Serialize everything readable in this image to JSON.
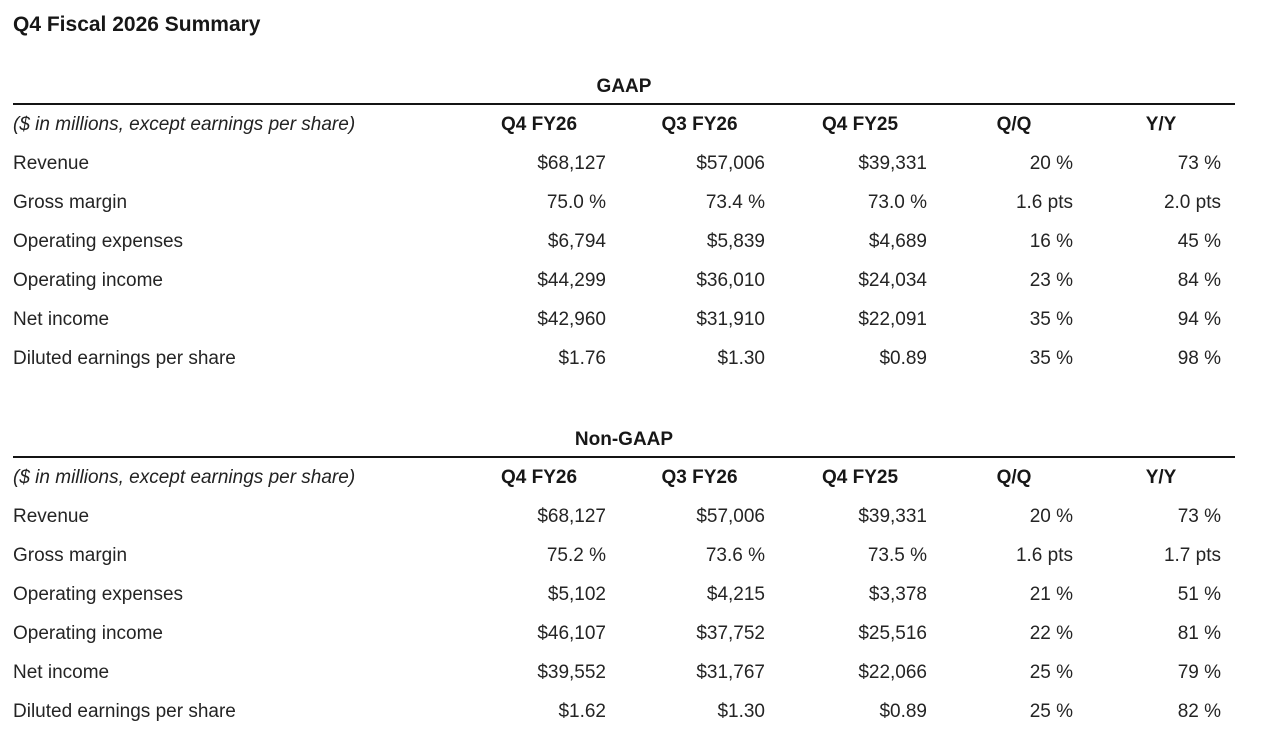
{
  "page": {
    "title": "Q4 Fiscal 2026 Summary"
  },
  "table_note": "($ in millions, except earnings per share)",
  "columns": [
    "Q4 FY26",
    "Q3 FY26",
    "Q4 FY25",
    "Q/Q",
    "Y/Y"
  ],
  "sections": [
    {
      "title": "GAAP",
      "rows": [
        {
          "label": "Revenue",
          "values": [
            "$68,127",
            "$57,006",
            "$39,331",
            "20 %",
            "73 %"
          ]
        },
        {
          "label": "Gross margin",
          "values": [
            "75.0 %",
            "73.4 %",
            "73.0 %",
            "1.6 pts",
            "2.0 pts"
          ]
        },
        {
          "label": "Operating expenses",
          "values": [
            "$6,794",
            "$5,839",
            "$4,689",
            "16 %",
            "45 %"
          ]
        },
        {
          "label": "Operating income",
          "values": [
            "$44,299",
            "$36,010",
            "$24,034",
            "23 %",
            "84 %"
          ]
        },
        {
          "label": "Net income",
          "values": [
            "$42,960",
            "$31,910",
            "$22,091",
            "35 %",
            "94 %"
          ]
        },
        {
          "label": "Diluted earnings per share",
          "values": [
            "$1.76",
            "$1.30",
            "$0.89",
            "35 %",
            "98 %"
          ]
        }
      ]
    },
    {
      "title": "Non-GAAP",
      "rows": [
        {
          "label": "Revenue",
          "values": [
            "$68,127",
            "$57,006",
            "$39,331",
            "20 %",
            "73 %"
          ]
        },
        {
          "label": "Gross margin",
          "values": [
            "75.2 %",
            "73.6 %",
            "73.5 %",
            "1.6 pts",
            "1.7 pts"
          ]
        },
        {
          "label": "Operating expenses",
          "values": [
            "$5,102",
            "$4,215",
            "$3,378",
            "21 %",
            "51 %"
          ]
        },
        {
          "label": "Operating income",
          "values": [
            "$46,107",
            "$37,752",
            "$25,516",
            "22 %",
            "81 %"
          ]
        },
        {
          "label": "Net income",
          "values": [
            "$39,552",
            "$31,767",
            "$22,066",
            "25 %",
            "79 %"
          ]
        },
        {
          "label": "Diluted earnings per share",
          "values": [
            "$1.62",
            "$1.30",
            "$0.89",
            "25 %",
            "82 %"
          ]
        }
      ]
    }
  ],
  "colors": {
    "background": "#ffffff",
    "text": "#242424",
    "heading_text": "#171717",
    "rule": "#141414"
  }
}
